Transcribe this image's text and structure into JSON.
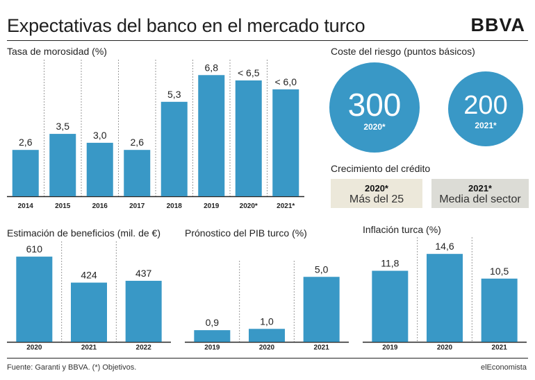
{
  "header": {
    "title": "Expectativas del banco en el mercado turco",
    "logo": "BBVA"
  },
  "chart_data": [
    {
      "type": "bar",
      "title": "Tasa de morosidad (%)",
      "categories": [
        "2014",
        "2015",
        "2016",
        "2017",
        "2018",
        "2019",
        "2020*",
        "2021*"
      ],
      "values": [
        2.6,
        3.5,
        3.0,
        2.6,
        5.3,
        6.8,
        6.5,
        6.0
      ],
      "labels": [
        "2,6",
        "3,5",
        "3,0",
        "2,6",
        "5,3",
        "6,8",
        "< 6,5",
        "< 6,0"
      ],
      "ylim": [
        0,
        7.2
      ],
      "grid": "dotted vertical separators",
      "color": "#3998c6"
    },
    {
      "type": "bar",
      "title": "Estimación de beneficios (mil. de €)",
      "categories": [
        "2020",
        "2021",
        "2022"
      ],
      "values": [
        610,
        424,
        437
      ],
      "labels": [
        "610",
        "424",
        "437"
      ],
      "ylim": [
        0,
        660
      ],
      "color": "#3998c6"
    },
    {
      "type": "bar",
      "title": "Prónostico del PIB turco (%)",
      "categories": [
        "2019",
        "2020",
        "2021"
      ],
      "values": [
        0.9,
        1.0,
        5.0
      ],
      "labels": [
        "0,9",
        "1,0",
        "5,0"
      ],
      "ylim": [
        0,
        5.6
      ],
      "color": "#3998c6"
    },
    {
      "type": "bar",
      "title": "Inflación turca (%)",
      "categories": [
        "2019",
        "2020",
        "2021"
      ],
      "values": [
        11.8,
        14.6,
        10.5
      ],
      "labels": [
        "11,8",
        "14,6",
        "10,5"
      ],
      "ylim": [
        0,
        16
      ],
      "color": "#3998c6"
    }
  ],
  "risk": {
    "title": "Coste del riesgo (puntos básicos)",
    "items": [
      {
        "value": "300",
        "year": "2020*"
      },
      {
        "value": "200",
        "year": "2021*"
      }
    ]
  },
  "credit": {
    "title": "Crecimiento del crédito",
    "items": [
      {
        "year": "2020*",
        "text": "Más del 25",
        "bg": "#ece8da"
      },
      {
        "year": "2021*",
        "text": "Media del sector",
        "bg": "#dcdcd6"
      }
    ]
  },
  "footer": {
    "source": "Fuente: Garanti y BBVA. (*) Objetivos.",
    "brand": "elEconomista"
  },
  "colors": {
    "bar": "#3998c6",
    "bubble": "#3998c6"
  }
}
